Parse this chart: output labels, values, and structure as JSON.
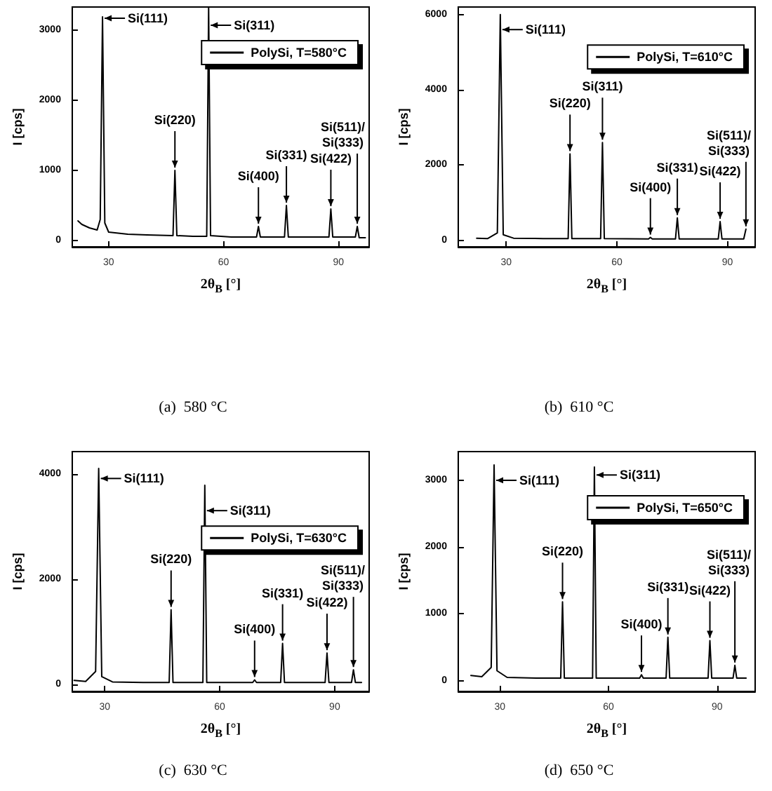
{
  "chart_data": [
    {
      "type": "line",
      "xlabel": "2θ$_{B}$ [°]",
      "ylabel": "I [cps]",
      "xlim": [
        20.5,
        98
      ],
      "ylim": [
        -90,
        3330
      ],
      "xticks": [
        30,
        60,
        90
      ],
      "yticks": [
        0,
        1000,
        2000,
        3000
      ],
      "legend": "top right",
      "marker": "none",
      "line_style": "solid",
      "x": [
        22,
        23,
        25,
        27,
        27.8,
        28.4,
        29.0,
        30,
        35,
        40,
        46.8,
        47.3,
        47.8,
        52,
        55.6,
        56.1,
        56.6,
        62,
        68.6,
        69.1,
        69.6,
        75.9,
        76.4,
        76.9,
        87.5,
        88.0,
        88.5,
        94.4,
        94.9,
        95.4,
        97
      ],
      "series": [
        {
          "name": "PolySi, T=580°C",
          "color": "#000000",
          "values": [
            280,
            230,
            180,
            150,
            300,
            3190,
            250,
            120,
            90,
            80,
            70,
            1000,
            70,
            60,
            60,
            3330,
            70,
            50,
            50,
            200,
            50,
            50,
            500,
            50,
            50,
            450,
            50,
            50,
            200,
            40,
            40
          ]
        }
      ],
      "annotations": [
        {
          "text": "Si(111)",
          "x": 28.4,
          "y": 3170
        },
        {
          "text": "Si(220)",
          "x": 47.3,
          "y": 1000
        },
        {
          "text": "Si(311)",
          "x": 56.1,
          "y": 3070
        },
        {
          "text": "Si(400)",
          "x": 69.1,
          "y": 200
        },
        {
          "text": "Si(331)",
          "x": 76.4,
          "y": 500
        },
        {
          "text": "Si(422)",
          "x": 88.0,
          "y": 450
        },
        {
          "text": "Si(511)/\nSi(333)",
          "x": 94.9,
          "y": 200
        },
        "(a)  580 °C"
      ]
    },
    {
      "type": "line",
      "xlabel": "2θ$_{B}$ [°]",
      "ylabel": "I [cps]",
      "xlim": [
        17,
        97.5
      ],
      "ylim": [
        -170,
        6200
      ],
      "xticks": [
        30,
        60,
        90
      ],
      "yticks": [
        0,
        2000,
        4000,
        6000
      ],
      "legend": "top right",
      "marker": "none",
      "line_style": "solid",
      "x": [
        22,
        25,
        27.6,
        28.4,
        29.2,
        32,
        40,
        46.8,
        47.3,
        47.8,
        55.6,
        56.1,
        56.6,
        68.6,
        69.1,
        69.6,
        75.9,
        76.4,
        76.9,
        87.5,
        88.0,
        88.5,
        94.4,
        95,
        95.2
      ],
      "series": [
        {
          "name": "PolySi, T=610°C",
          "color": "#000000",
          "values": [
            60,
            50,
            200,
            6000,
            150,
            60,
            50,
            50,
            2300,
            50,
            50,
            2600,
            50,
            40,
            80,
            40,
            40,
            600,
            40,
            40,
            500,
            40,
            40,
            300,
            300
          ]
        }
      ],
      "annotations": [
        {
          "text": "Si(111)",
          "x": 28.4,
          "y": 5600
        },
        {
          "text": "Si(220)",
          "x": 47.3,
          "y": 2300
        },
        {
          "text": "Si(311)",
          "x": 56.1,
          "y": 2600
        },
        {
          "text": "Si(400)",
          "x": 69.1,
          "y": 80
        },
        {
          "text": "Si(331)",
          "x": 76.4,
          "y": 600
        },
        {
          "text": "Si(422)",
          "x": 88.0,
          "y": 500
        },
        {
          "text": "Si(511)/\nSi(333)",
          "x": 95,
          "y": 300
        },
        "(b)  610 °C"
      ]
    },
    {
      "type": "line",
      "xlabel": "2θ$_{B}$ [°]",
      "ylabel": "I [cps]",
      "xlim": [
        21.5,
        99
      ],
      "ylim": [
        -130,
        4420
      ],
      "xticks": [
        30,
        60,
        90
      ],
      "yticks": [
        0,
        2000,
        4000
      ],
      "legend": "top right",
      "marker": "none",
      "line_style": "solid",
      "x": [
        22,
        25,
        27.6,
        28.4,
        29.2,
        32,
        40,
        46.8,
        47.3,
        47.8,
        55.6,
        56.1,
        56.6,
        68.6,
        69.1,
        69.6,
        75.9,
        76.4,
        76.9,
        87.5,
        88.0,
        88.5,
        94.4,
        94.9,
        95.4,
        97
      ],
      "series": [
        {
          "name": "PolySi, T=630°C",
          "color": "#000000",
          "values": [
            80,
            60,
            250,
            4100,
            150,
            50,
            40,
            40,
            1420,
            40,
            40,
            3780,
            40,
            40,
            90,
            40,
            40,
            780,
            40,
            40,
            600,
            40,
            40,
            280,
            40,
            40
          ]
        }
      ],
      "annotations": [
        {
          "text": "Si(111)",
          "x": 28.4,
          "y": 3910
        },
        {
          "text": "Si(220)",
          "x": 47.3,
          "y": 1420
        },
        {
          "text": "Si(311)",
          "x": 56.1,
          "y": 3300
        },
        {
          "text": "Si(400)",
          "x": 69.1,
          "y": 90
        },
        {
          "text": "Si(331)",
          "x": 76.4,
          "y": 780
        },
        {
          "text": "Si(422)",
          "x": 88.0,
          "y": 600
        },
        {
          "text": "Si(511)/\nSi(333)",
          "x": 94.9,
          "y": 280
        },
        "(c)  630 °C"
      ]
    },
    {
      "type": "line",
      "xlabel": "2θ$_{B}$ [°]",
      "ylabel": "I [cps]",
      "xlim": [
        18.5,
        100.5
      ],
      "ylim": [
        -160,
        3430
      ],
      "xticks": [
        30,
        60,
        90
      ],
      "yticks": [
        0,
        1000,
        2000,
        3000
      ],
      "legend": "top right",
      "marker": "none",
      "line_style": "solid",
      "x": [
        22,
        25,
        27.6,
        28.4,
        29.2,
        32,
        40,
        46.8,
        47.3,
        47.8,
        55.6,
        56.1,
        56.6,
        68.6,
        69.1,
        69.6,
        75.9,
        76.4,
        76.9,
        87.5,
        88.0,
        88.5,
        94.4,
        94.9,
        95.4,
        98
      ],
      "series": [
        {
          "name": "PolySi, T=650°C",
          "color": "#000000",
          "values": [
            80,
            60,
            200,
            3230,
            150,
            50,
            40,
            40,
            1180,
            40,
            40,
            3200,
            40,
            40,
            90,
            40,
            40,
            650,
            40,
            40,
            600,
            40,
            40,
            230,
            40,
            40
          ]
        }
      ],
      "annotations": [
        {
          "text": "Si(111)",
          "x": 28.4,
          "y": 3000
        },
        {
          "text": "Si(220)",
          "x": 47.3,
          "y": 1180
        },
        {
          "text": "Si(311)",
          "x": 56.1,
          "y": 3080
        },
        {
          "text": "Si(400)",
          "x": 69.1,
          "y": 90
        },
        {
          "text": "Si(331)",
          "x": 76.4,
          "y": 650
        },
        {
          "text": "Si(422)",
          "x": 88.0,
          "y": 600
        },
        {
          "text": "Si(511)/\nSi(333)",
          "x": 94.9,
          "y": 230
        },
        "(d)  650 °C"
      ]
    }
  ]
}
